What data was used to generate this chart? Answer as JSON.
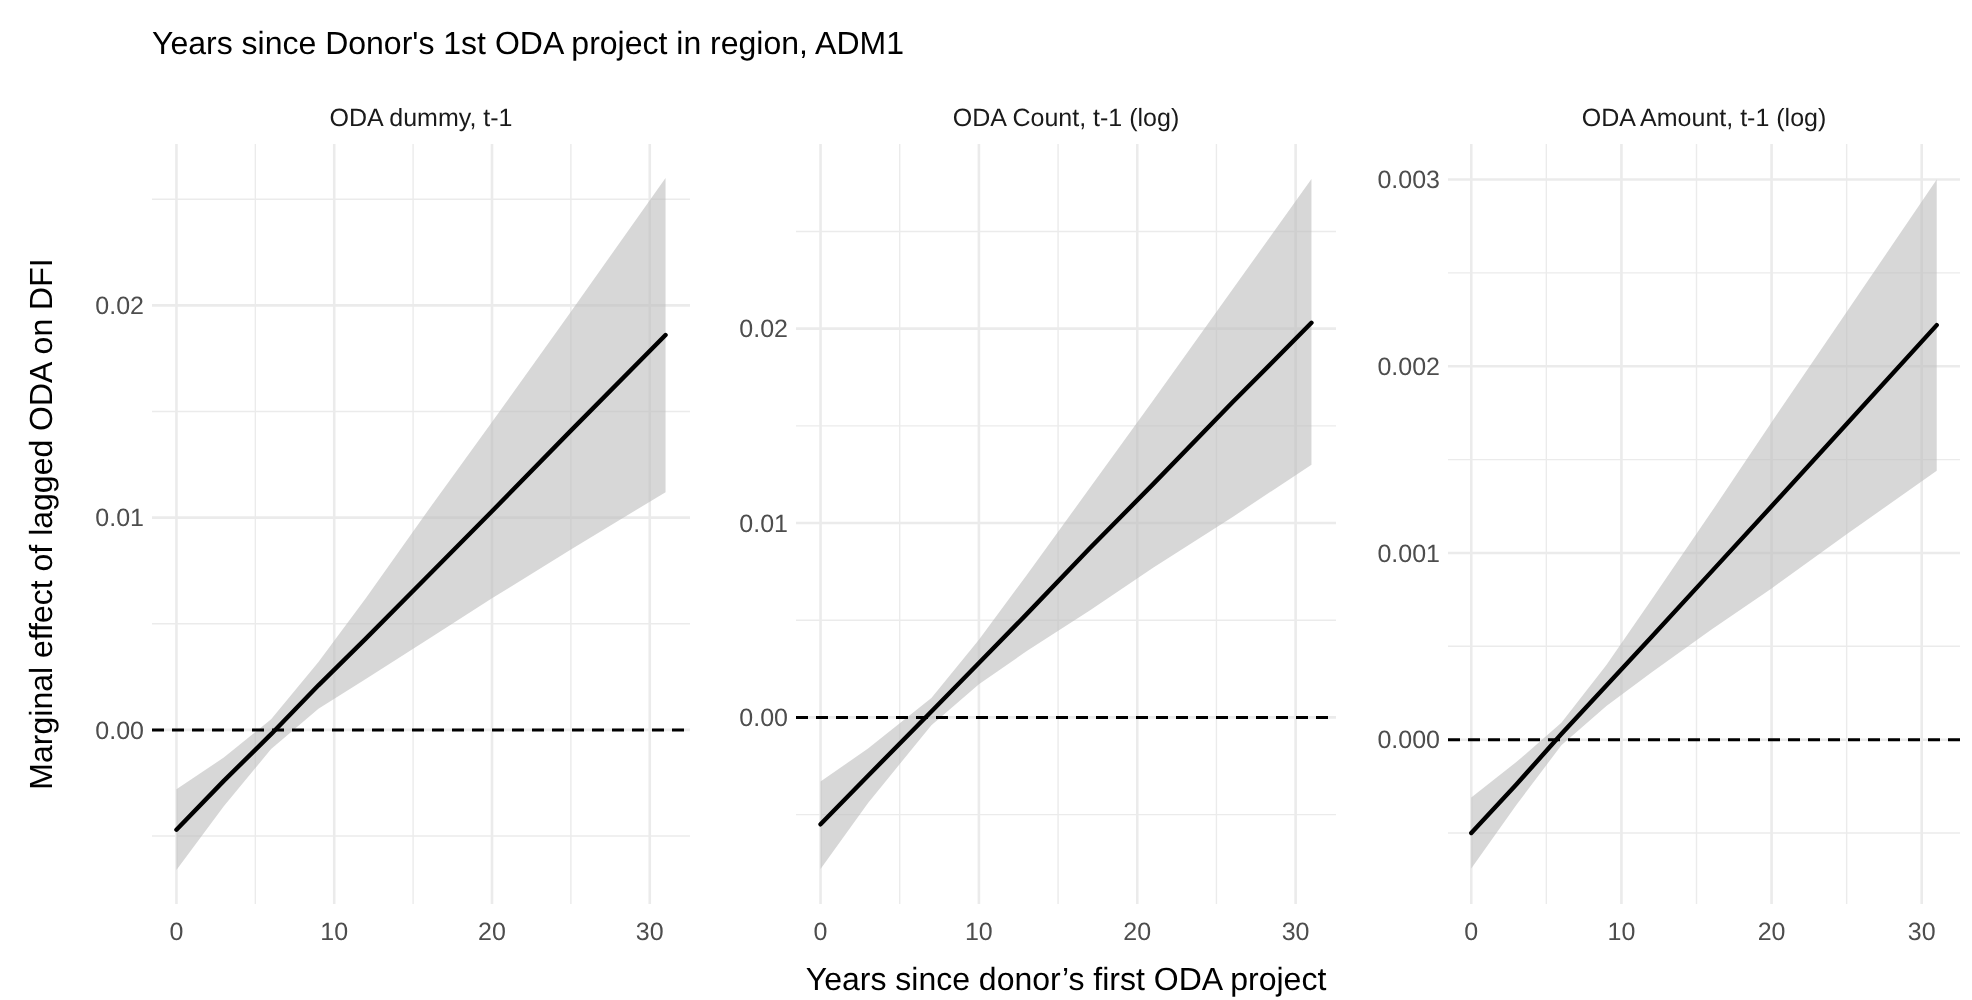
{
  "chart_data": [
    {
      "type": "line",
      "title": "Years since Donor's 1st ODA project in region, ADM1",
      "subtitle": "ODA dummy, t-1",
      "ylabel": "Marginal effect of lagged ODA on DFI",
      "x": [
        0,
        3,
        6,
        9,
        12,
        16,
        20,
        25,
        31
      ],
      "series": [
        {
          "color": "#000000",
          "values": [
            -0.0047,
            -0.0024,
            -0.0002,
            0.0021,
            0.0043,
            0.0073,
            0.0103,
            0.0141,
            0.0186
          ],
          "lower": [
            -0.0066,
            -0.0036,
            -0.0009,
            0.001,
            0.0024,
            0.0043,
            0.0062,
            0.0085,
            0.0112
          ],
          "upper": [
            -0.0028,
            -0.0013,
            0.0005,
            0.0032,
            0.0062,
            0.0104,
            0.0145,
            0.0197,
            0.026
          ]
        }
      ],
      "xlim": [
        -1.55,
        32.55
      ],
      "ylim": [
        -0.0082,
        0.0276
      ],
      "xticks": [
        0,
        {
          "value": 5,
          "label": null
        },
        10,
        {
          "value": 15,
          "label": null
        },
        20,
        {
          "value": 25,
          "label": null
        },
        30
      ],
      "yticks": [
        {
          "value": -0.005,
          "label": null
        },
        "0.00",
        {
          "value": 0.005,
          "label": null
        },
        {
          "value": 0.01,
          "label": "0.01"
        },
        {
          "value": 0.015,
          "label": null
        },
        {
          "value": 0.02,
          "label": "0.02"
        },
        {
          "value": 0.025,
          "label": null
        }
      ],
      "ref_lines": [
        {
          "axis": "y",
          "value": 0,
          "line_style": "dashed",
          "color": "#000000"
        }
      ],
      "grid": true,
      "line_style": "solid",
      "marker": "none"
    },
    {
      "type": "line",
      "title": "ODA Count, t-1 (log)",
      "xlabel": "Years since donor’s first ODA project",
      "x": [
        0,
        3,
        7,
        10,
        13,
        17,
        21,
        26,
        31
      ],
      "series": [
        {
          "color": "#000000",
          "values": [
            -0.0055,
            -0.003,
            0.0003,
            0.0028,
            0.0053,
            0.0087,
            0.012,
            0.0162,
            0.0203
          ],
          "lower": [
            -0.0078,
            -0.0044,
            -0.0004,
            0.0017,
            0.0034,
            0.0055,
            0.0077,
            0.0103,
            0.013
          ],
          "upper": [
            -0.0033,
            -0.0016,
            0.001,
            0.004,
            0.0073,
            0.0118,
            0.0163,
            0.022,
            0.0277
          ]
        }
      ],
      "xlim": [
        -1.55,
        32.55
      ],
      "ylim": [
        -0.0096,
        0.0295
      ],
      "xticks": [
        0,
        {
          "value": 5,
          "label": null
        },
        10,
        {
          "value": 15,
          "label": null
        },
        20,
        {
          "value": 25,
          "label": null
        },
        30
      ],
      "yticks": [
        {
          "value": -0.005,
          "label": null
        },
        {
          "value": 0,
          "label": "0.00"
        },
        {
          "value": 0.005,
          "label": null
        },
        {
          "value": 0.01,
          "label": "0.01"
        },
        {
          "value": 0.015,
          "label": null
        },
        {
          "value": 0.02,
          "label": "0.02"
        },
        {
          "value": 0.025,
          "label": null
        }
      ],
      "ref_lines": [
        {
          "axis": "y",
          "value": 0,
          "line_style": "dashed",
          "color": "#000000"
        }
      ],
      "grid": true,
      "line_style": "solid",
      "marker": "none"
    },
    {
      "type": "line",
      "title": "ODA Amount, t-1 (log)",
      "x": [
        0,
        3,
        6,
        9,
        12,
        16,
        20,
        25,
        31
      ],
      "series": [
        {
          "color": "#000000",
          "values": [
            -0.0005,
            -0.00024,
            3e-05,
            0.00029,
            0.00055,
            0.0009,
            0.00125,
            0.00169,
            0.00222
          ],
          "lower": [
            -0.00069,
            -0.00035,
            -3e-05,
            0.00018,
            0.00036,
            0.00059,
            0.00081,
            0.0011,
            0.00144
          ],
          "upper": [
            -0.00031,
            -0.00012,
            9e-05,
            0.0004,
            0.00075,
            0.00122,
            0.0017,
            0.00229,
            0.003
          ]
        }
      ],
      "xlim": [
        -1.55,
        32.55
      ],
      "ylim": [
        -0.00088,
        0.00319
      ],
      "xticks": [
        0,
        {
          "value": 5,
          "label": null
        },
        10,
        {
          "value": 15,
          "label": null
        },
        20,
        {
          "value": 25,
          "label": null
        },
        30
      ],
      "yticks": [
        {
          "value": -0.0005,
          "label": null
        },
        {
          "value": 0,
          "label": "0.000"
        },
        {
          "value": 0.0005,
          "label": null
        },
        {
          "value": 0.001,
          "label": "0.001"
        },
        {
          "value": 0.0015,
          "label": null
        },
        {
          "value": 0.002,
          "label": "0.002"
        },
        {
          "value": 0.0025,
          "label": null
        },
        {
          "value": 0.003,
          "label": "0.003"
        }
      ],
      "ref_lines": [
        {
          "axis": "y",
          "value": 0,
          "line_style": "dashed",
          "color": "#000000"
        }
      ],
      "grid": true,
      "line_style": "solid",
      "marker": "none"
    }
  ]
}
